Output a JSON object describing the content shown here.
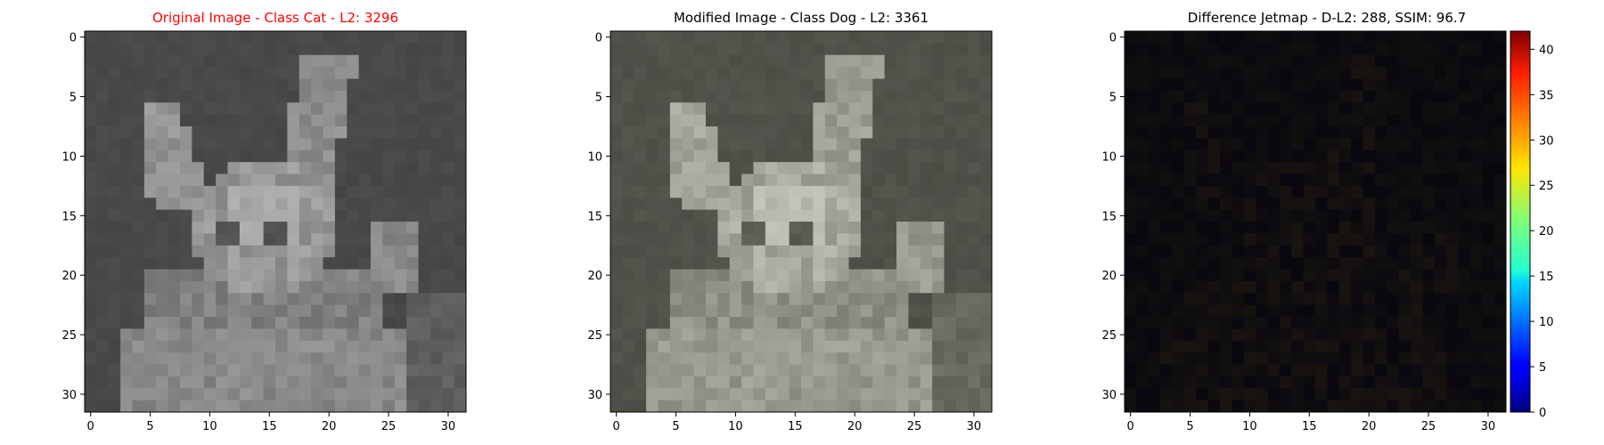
{
  "figure": {
    "panels": [
      {
        "title": "Original Image - Class Cat - L2: 3296",
        "title_color": "#ff0000",
        "image": "grayscale-cat-photo"
      },
      {
        "title": "Modified Image - Class Dog - L2: 3361",
        "title_color": "#000000",
        "image": "adversarial-modified-photo"
      },
      {
        "title": "Difference Jetmap - D-L2: 288, SSIM: 96.7",
        "title_color": "#000000",
        "image": "jet-colormap-difference"
      }
    ],
    "colorbar": {
      "ticks": [
        "0",
        "5",
        "10",
        "15",
        "20",
        "25",
        "30",
        "35",
        "40"
      ],
      "colormap": "jet",
      "range": [
        0,
        42
      ]
    }
  },
  "chart_data": [
    {
      "type": "heatmap",
      "title": "Original Image - Class Cat - L2: 3296",
      "x_ticks": [
        "0",
        "5",
        "10",
        "15",
        "20",
        "25",
        "30"
      ],
      "y_ticks": [
        "0",
        "5",
        "10",
        "15",
        "20",
        "25",
        "30"
      ],
      "xlim": [
        -0.5,
        31.5
      ],
      "ylim": [
        31.5,
        -0.5
      ],
      "grid_size": [
        32,
        32
      ],
      "colors": [
        "#2a2a2a",
        "#bcbcbc"
      ]
    },
    {
      "type": "heatmap",
      "title": "Modified Image - Class Dog - L2: 3361",
      "x_ticks": [
        "0",
        "5",
        "10",
        "15",
        "20",
        "25",
        "30"
      ],
      "y_ticks": [
        "0",
        "5",
        "10",
        "15",
        "20",
        "25",
        "30"
      ],
      "xlim": [
        -0.5,
        31.5
      ],
      "ylim": [
        31.5,
        -0.5
      ],
      "grid_size": [
        32,
        32
      ],
      "colors": [
        "#2d3029",
        "#c9cabd"
      ]
    },
    {
      "type": "heatmap",
      "title": "Difference Jetmap - D-L2: 288, SSIM: 96.7",
      "x_ticks": [
        "0",
        "5",
        "10",
        "15",
        "20",
        "25",
        "30"
      ],
      "y_ticks": [
        "0",
        "5",
        "10",
        "15",
        "20",
        "25",
        "30"
      ],
      "xlim": [
        -0.5,
        31.5
      ],
      "ylim": [
        31.5,
        -0.5
      ],
      "grid_size": [
        32,
        32
      ],
      "colorbar_ticks": [
        0,
        5,
        10,
        15,
        20,
        25,
        30,
        35,
        40
      ],
      "colorbar_range": [
        0,
        42
      ],
      "colors": [
        "#05040f",
        "#1f1a10"
      ]
    }
  ]
}
